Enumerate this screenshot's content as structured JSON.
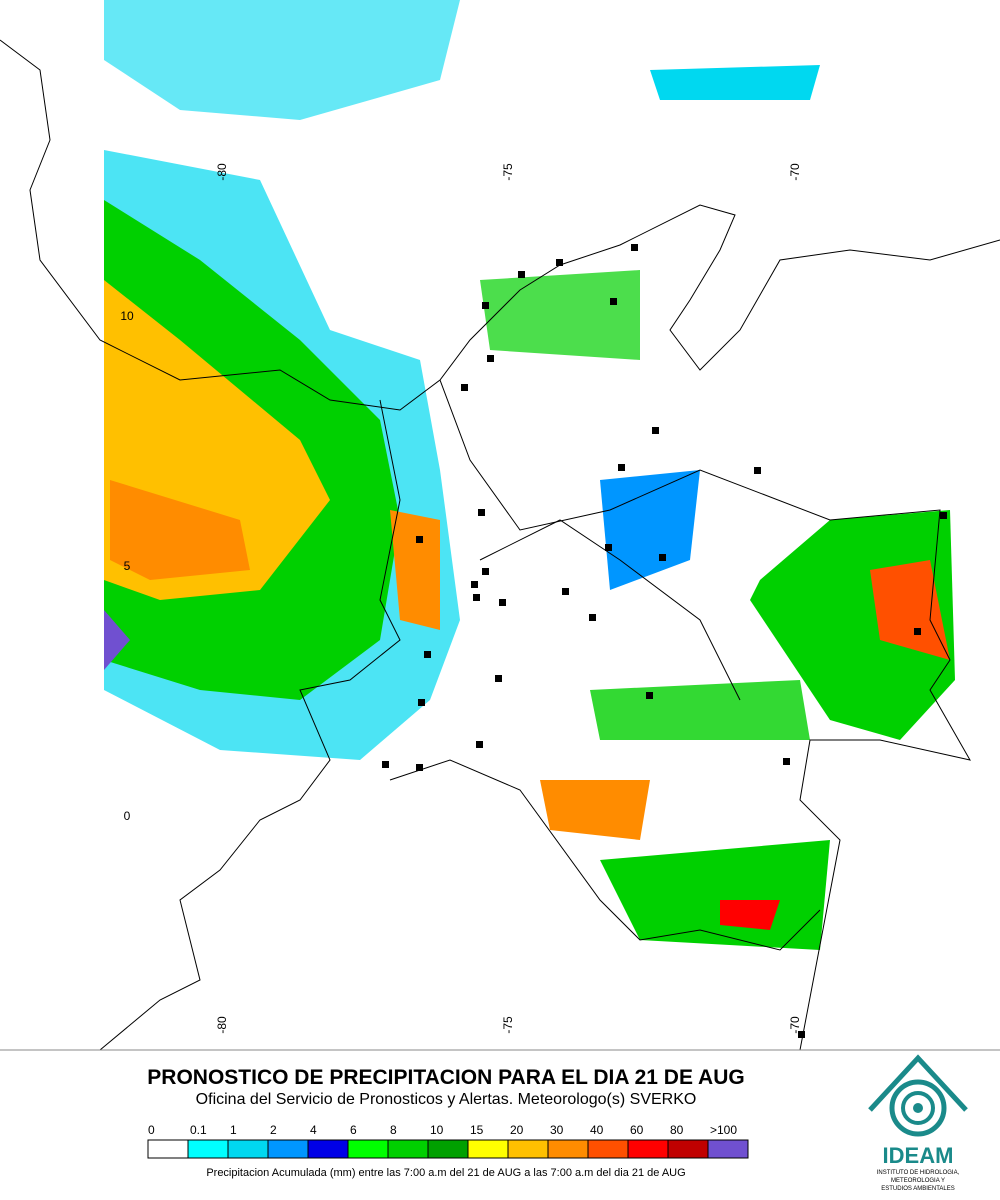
{
  "map": {
    "lon_labels_top": [
      "-80",
      "-75",
      "-70"
    ],
    "lon_labels_bottom": [
      "-80",
      "-75",
      "-70"
    ],
    "lat_labels": [
      "10",
      "5",
      "0"
    ]
  },
  "title": "PRONOSTICO DE PRECIPITACION PARA EL DIA 21 DE AUG",
  "subtitle": "Oficina del Servicio de Pronosticos y Alertas. Meteorologo(s) SVERKO",
  "legend": {
    "labels": [
      "0",
      "0.1",
      "1",
      "2",
      "4",
      "6",
      "8",
      "10",
      "15",
      "20",
      "30",
      "40",
      "60",
      "80",
      ">100"
    ],
    "colors": [
      "#ffffff",
      "#00ffff",
      "#00d8f0",
      "#0096ff",
      "#0000e6",
      "#00ff00",
      "#00d000",
      "#00a000",
      "#ffff00",
      "#ffc000",
      "#ff8c00",
      "#ff5000",
      "#ff0000",
      "#c00000",
      "#7050d0"
    ],
    "caption": "Precipitacion Acumulada (mm) entre las 7:00 a.m del 21 de AUG a las 7:00 a.m del dia 21 de AUG"
  },
  "logo": {
    "name": "IDEAM",
    "lines": [
      "INSTITUTO DE HIDROLOGIA,",
      "METEOROLOGIA Y",
      "ESTUDIOS AMBIENTALES"
    ]
  }
}
